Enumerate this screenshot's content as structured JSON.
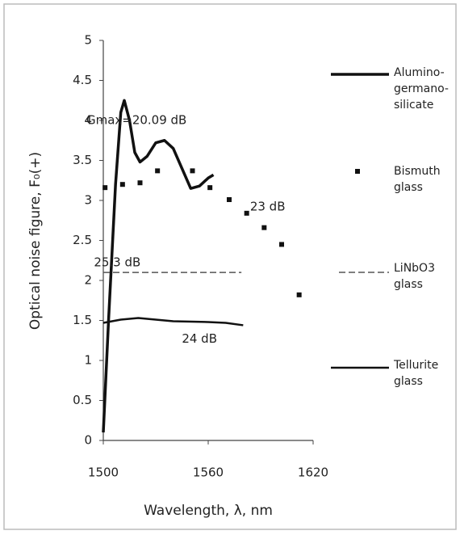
{
  "chart_data": {
    "type": "line",
    "xlabel": "Wavelength, λ, nm",
    "ylabel": "Optical noise figure, F₀(+)",
    "xlim": [
      1500,
      1620
    ],
    "xticks": [
      1500,
      1560,
      1620
    ],
    "ylim": [
      0,
      5
    ],
    "yticks": [
      0,
      0.5,
      1,
      1.5,
      2,
      2.5,
      3,
      3.5,
      4,
      4.5,
      5
    ],
    "grid": false,
    "legend": "right",
    "series": [
      {
        "name": "Alumino-germano-silicate",
        "color": "#111111",
        "style": "line",
        "x": [
          1500,
          1503,
          1507,
          1510,
          1512,
          1515,
          1518,
          1521,
          1525,
          1530,
          1535,
          1540,
          1545,
          1550,
          1555,
          1560,
          1563
        ],
        "values": [
          0.1,
          1.5,
          3.2,
          4.1,
          4.25,
          4.0,
          3.6,
          3.48,
          3.55,
          3.72,
          3.75,
          3.65,
          3.4,
          3.15,
          3.18,
          3.28,
          3.32
        ]
      },
      {
        "name": "Bismuth glass",
        "color": "#111111",
        "style": "markers",
        "x": [
          1501,
          1511,
          1521,
          1531,
          1551,
          1561,
          1572,
          1582,
          1592,
          1602,
          1612
        ],
        "values": [
          3.16,
          3.2,
          3.22,
          3.37,
          3.37,
          3.16,
          3.01,
          2.84,
          2.66,
          2.45,
          1.82
        ]
      },
      {
        "name": "LiNbO3 glass",
        "color": "#555555",
        "style": "dashed",
        "x": [
          1500,
          1540,
          1579
        ],
        "values": [
          2.1,
          2.1,
          2.1
        ]
      },
      {
        "name": "Tellurite glass",
        "color": "#111111",
        "style": "line",
        "x": [
          1500,
          1510,
          1520,
          1530,
          1540,
          1560,
          1570,
          1580
        ],
        "values": [
          1.47,
          1.51,
          1.53,
          1.51,
          1.49,
          1.48,
          1.47,
          1.44
        ]
      }
    ],
    "annotations": [
      {
        "text": "Gmax=20.09 dB",
        "x": 1519,
        "y": 4.0
      },
      {
        "text": "23 dB",
        "x": 1594,
        "y": 2.92
      },
      {
        "text": "25.3 dB",
        "x": 1508,
        "y": 2.22
      },
      {
        "text": "24 dB",
        "x": 1555,
        "y": 1.27
      }
    ]
  }
}
